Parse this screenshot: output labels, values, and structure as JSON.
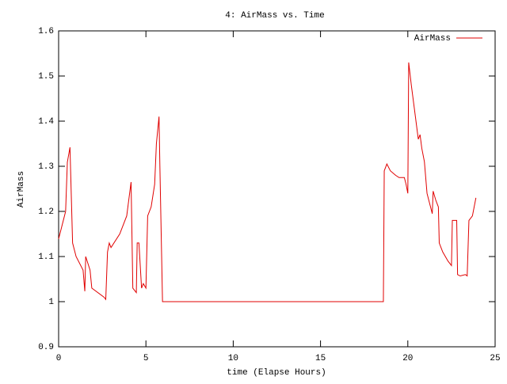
{
  "chart_data": {
    "type": "line",
    "title": "4: AirMass vs. Time",
    "x_label": "time (Elapse Hours)",
    "y_label": "AirMass",
    "xlim": [
      0,
      25
    ],
    "xticks": [
      0,
      5,
      10,
      15,
      20,
      25
    ],
    "ylim": [
      0.9,
      1.6
    ],
    "yticks": [
      {
        "value": 0.9,
        "label": "0.9"
      },
      1,
      1.1,
      1.2,
      1.3,
      1.4,
      1.5,
      1.6
    ],
    "legend": "top right",
    "grid": false,
    "x": [
      0,
      0.4,
      0.5,
      0.65,
      0.8,
      1.0,
      1.4,
      1.5,
      1.55,
      1.8,
      1.9,
      2.6,
      2.7,
      2.8,
      2.9,
      3.0,
      3.5,
      3.9,
      4.1,
      4.15,
      4.25,
      4.45,
      4.5,
      4.6,
      4.75,
      4.85,
      5.0,
      5.1,
      5.3,
      5.5,
      5.6,
      5.75,
      5.8,
      5.9,
      5.95,
      18.5,
      18.6,
      18.65,
      18.8,
      19.0,
      19.3,
      19.5,
      19.8,
      19.9,
      20.0,
      20.05,
      20.2,
      20.4,
      20.6,
      20.7,
      20.8,
      20.95,
      21.1,
      21.3,
      21.4,
      21.45,
      21.6,
      21.75,
      21.8,
      22.0,
      22.3,
      22.5,
      22.55,
      22.8,
      22.85,
      23.0,
      23.3,
      23.4,
      23.5,
      23.7,
      23.9
    ],
    "series": [
      {
        "name": "AirMass",
        "color": "#e00000",
        "values": [
          1.139,
          1.2,
          1.309,
          1.342,
          1.13,
          1.1,
          1.07,
          1.023,
          1.1,
          1.07,
          1.03,
          1.01,
          1.005,
          1.11,
          1.13,
          1.12,
          1.15,
          1.19,
          1.25,
          1.265,
          1.03,
          1.02,
          1.13,
          1.13,
          1.03,
          1.04,
          1.03,
          1.19,
          1.21,
          1.26,
          1.35,
          1.41,
          1.3,
          1.1,
          1.0,
          1.0,
          1.0,
          1.29,
          1.305,
          1.29,
          1.28,
          1.275,
          1.275,
          1.26,
          1.24,
          1.53,
          1.48,
          1.42,
          1.36,
          1.37,
          1.34,
          1.31,
          1.24,
          1.21,
          1.195,
          1.245,
          1.225,
          1.21,
          1.13,
          1.11,
          1.09,
          1.08,
          1.18,
          1.18,
          1.06,
          1.057,
          1.06,
          1.057,
          1.18,
          1.19,
          1.23
        ]
      }
    ]
  }
}
